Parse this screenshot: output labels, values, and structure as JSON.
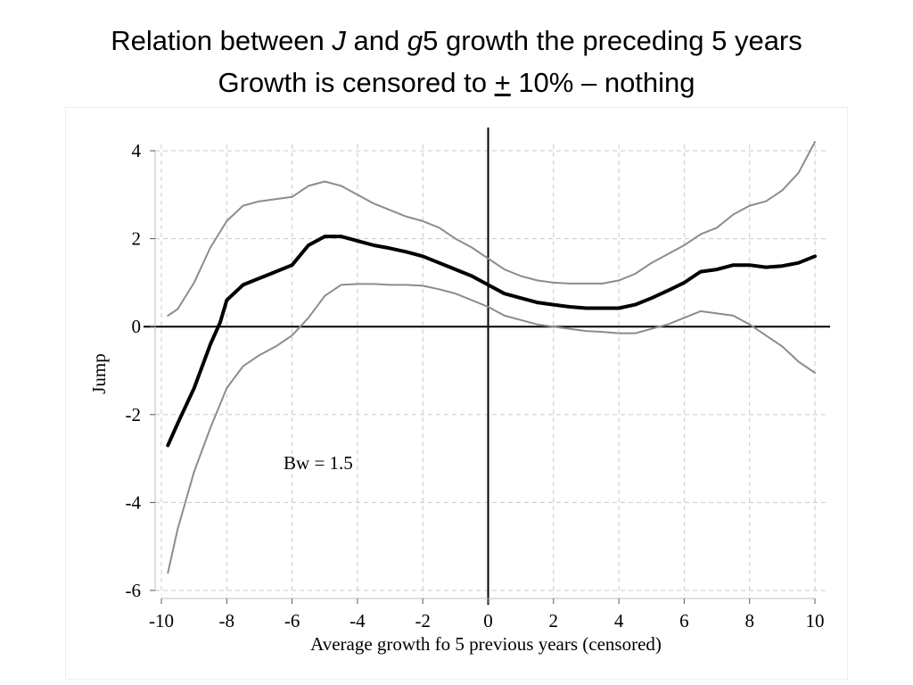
{
  "slide": {
    "title_line1_a": "Relation between ",
    "title_line1_j": "J",
    "title_line1_b": " and ",
    "title_line1_g": "g",
    "title_line1_c": "5 growth the preceding 5 years",
    "title_line2_a": "Growth is censored to ",
    "title_line2_pm": "+",
    "title_line2_b": " 10% – nothing"
  },
  "chart_data": {
    "type": "line",
    "xlabel": "Average growth fo 5 previous years (censored)",
    "ylabel": "Jump",
    "xlim": [
      -10,
      10
    ],
    "ylim": [
      -6,
      4
    ],
    "xticks": [
      -10,
      -8,
      -6,
      -4,
      -2,
      0,
      2,
      4,
      6,
      8,
      10
    ],
    "yticks": [
      -6,
      -4,
      -2,
      0,
      2,
      4
    ],
    "xtick_labels": [
      "-10",
      "-8",
      "-6",
      "-4",
      "-2",
      "0",
      "2",
      "4",
      "6",
      "8",
      "10"
    ],
    "ytick_labels": [
      "-6",
      "-4",
      "-2",
      "0",
      "2",
      "4"
    ],
    "grid": true,
    "reference_lines": {
      "y": 0,
      "x": 0
    },
    "annotation": {
      "text": "Bw = 1.5",
      "x": -5.2,
      "y": -3.1
    },
    "series": [
      {
        "name": "estimate",
        "color": "#000000",
        "x": [
          -9.8,
          -9.5,
          -9,
          -8.5,
          -8.2,
          -8,
          -7.5,
          -7,
          -6.5,
          -6,
          -5.5,
          -5,
          -4.5,
          -4,
          -3.5,
          -3,
          -2.5,
          -2,
          -1.5,
          -1,
          -0.5,
          0,
          0.5,
          1,
          1.5,
          2,
          2.5,
          3,
          3.5,
          4,
          4.5,
          5,
          5.5,
          6,
          6.5,
          7,
          7.5,
          8,
          8.5,
          9,
          9.5,
          10
        ],
        "values": [
          -2.7,
          -2.2,
          -1.4,
          -0.4,
          0.1,
          0.6,
          0.95,
          1.1,
          1.25,
          1.4,
          1.85,
          2.05,
          2.05,
          1.95,
          1.85,
          1.78,
          1.7,
          1.6,
          1.45,
          1.3,
          1.15,
          0.95,
          0.75,
          0.65,
          0.55,
          0.5,
          0.45,
          0.42,
          0.42,
          0.42,
          0.5,
          0.65,
          0.82,
          1.0,
          1.25,
          1.3,
          1.4,
          1.4,
          1.35,
          1.38,
          1.45,
          1.6
        ]
      },
      {
        "name": "upper band",
        "color": "#8c8c8c",
        "x": [
          -9.8,
          -9.5,
          -9,
          -8.5,
          -8,
          -7.5,
          -7,
          -6.5,
          -6,
          -5.5,
          -5,
          -4.5,
          -4,
          -3.5,
          -3,
          -2.5,
          -2,
          -1.5,
          -1,
          -0.5,
          0,
          0.5,
          1,
          1.5,
          2,
          2.5,
          3,
          3.5,
          4,
          4.5,
          5,
          5.5,
          6,
          6.5,
          7,
          7.5,
          8,
          8.5,
          9,
          9.5,
          10
        ],
        "values": [
          0.25,
          0.4,
          1.0,
          1.8,
          2.4,
          2.75,
          2.85,
          2.9,
          2.95,
          3.2,
          3.3,
          3.2,
          3.0,
          2.8,
          2.65,
          2.5,
          2.4,
          2.25,
          2.0,
          1.8,
          1.55,
          1.3,
          1.15,
          1.05,
          1.0,
          0.98,
          0.98,
          0.98,
          1.05,
          1.2,
          1.45,
          1.65,
          1.85,
          2.1,
          2.25,
          2.55,
          2.75,
          2.85,
          3.1,
          3.5,
          4.2
        ]
      },
      {
        "name": "lower band",
        "color": "#8c8c8c",
        "x": [
          -9.8,
          -9.5,
          -9,
          -8.5,
          -8,
          -7.5,
          -7,
          -6.5,
          -6,
          -5.5,
          -5,
          -4.5,
          -4,
          -3.5,
          -3,
          -2.5,
          -2,
          -1.5,
          -1,
          -0.5,
          0,
          0.5,
          1,
          1.5,
          2,
          2.5,
          3,
          3.5,
          4,
          4.5,
          5,
          5.5,
          6,
          6.5,
          7,
          7.5,
          8,
          8.5,
          9,
          9.5,
          10
        ],
        "values": [
          -5.6,
          -4.6,
          -3.3,
          -2.3,
          -1.4,
          -0.9,
          -0.65,
          -0.45,
          -0.2,
          0.2,
          0.7,
          0.95,
          0.97,
          0.97,
          0.95,
          0.95,
          0.93,
          0.85,
          0.75,
          0.6,
          0.45,
          0.25,
          0.15,
          0.05,
          0.0,
          -0.05,
          -0.1,
          -0.12,
          -0.15,
          -0.15,
          -0.05,
          0.05,
          0.2,
          0.35,
          0.3,
          0.25,
          0.05,
          -0.2,
          -0.45,
          -0.8,
          -1.05
        ]
      }
    ]
  }
}
